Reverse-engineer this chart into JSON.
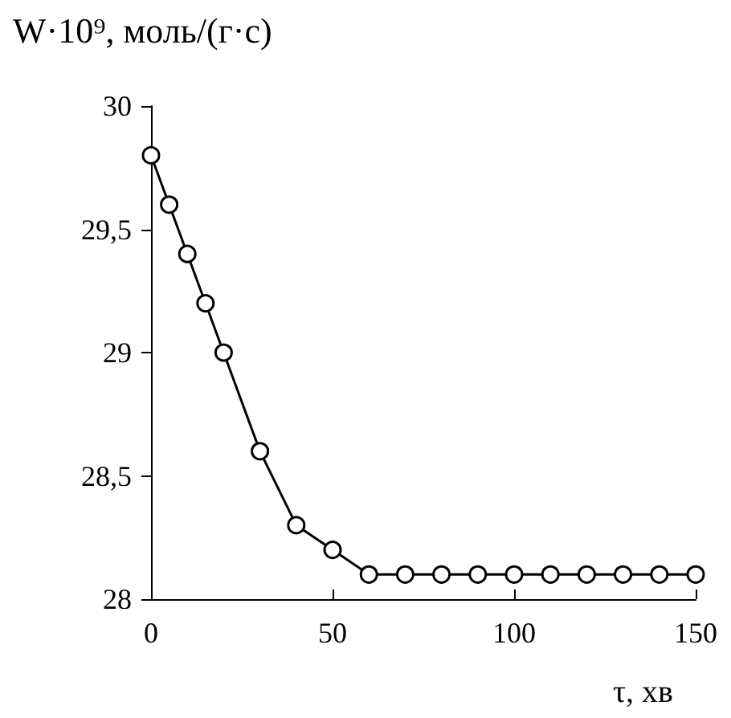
{
  "chart_data": {
    "type": "line",
    "ylabel": "W·10⁹, моль/(г·с)",
    "xlabel": "τ, хв",
    "x": [
      0,
      5,
      10,
      15,
      20,
      30,
      40,
      50,
      60,
      70,
      80,
      90,
      100,
      110,
      120,
      130,
      140,
      150
    ],
    "series": [
      {
        "color": "#000000",
        "values": [
          29.8,
          29.6,
          29.4,
          29.2,
          29.0,
          28.6,
          28.3,
          28.2,
          28.1,
          28.1,
          28.1,
          28.1,
          28.1,
          28.1,
          28.1,
          28.1,
          28.1,
          28.1
        ]
      }
    ],
    "xlim": [
      0,
      150
    ],
    "xticks": [
      0,
      50,
      100,
      150
    ],
    "ylim": [
      28,
      30
    ],
    "yticks": [
      28,
      {
        "value": 28.5,
        "label": "28,5"
      },
      29,
      {
        "value": 29.5,
        "label": "29,5"
      },
      30
    ],
    "grid": false,
    "marker": "circle",
    "line_style": "solid"
  }
}
